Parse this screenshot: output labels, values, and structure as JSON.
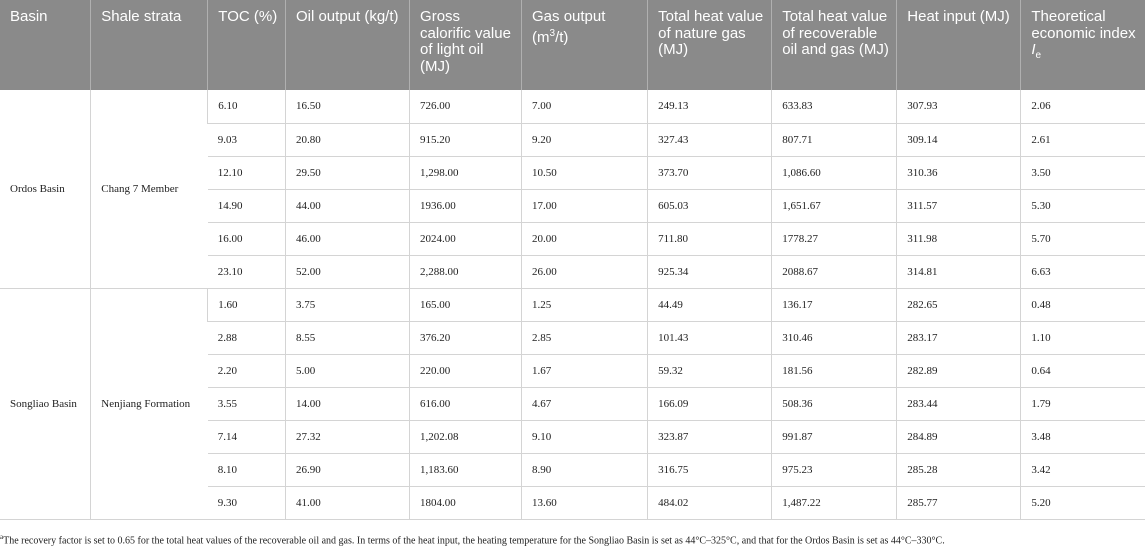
{
  "headers": {
    "basin": "Basin",
    "shale_strata": "Shale strata",
    "toc": "TOC (%)",
    "oil_output": "Oil output (kg/t)",
    "gross_calorific": "Gross calorific value of light oil (MJ)",
    "gas_output_main": "Gas output (m",
    "gas_output_sup": "3",
    "gas_output_tail": "/t)",
    "total_heat_gas": "Total heat value of nature gas (MJ)",
    "total_heat_recoverable": "Total heat value of recoverable oil and gas (MJ)",
    "heat_input": "Heat input (MJ)",
    "index_main": "Theoretical economic index ",
    "index_var": "I",
    "index_sub": "e"
  },
  "groups": [
    {
      "basin": "Ordos Basin",
      "strata": "Chang 7 Member",
      "rows": [
        [
          "6.10",
          "16.50",
          "726.00",
          "7.00",
          "249.13",
          "633.83",
          "307.93",
          "2.06"
        ],
        [
          "9.03",
          "20.80",
          "915.20",
          "9.20",
          "327.43",
          "807.71",
          "309.14",
          "2.61"
        ],
        [
          "12.10",
          "29.50",
          "1,298.00",
          "10.50",
          "373.70",
          "1,086.60",
          "310.36",
          "3.50"
        ],
        [
          "14.90",
          "44.00",
          "1936.00",
          "17.00",
          "605.03",
          "1,651.67",
          "311.57",
          "5.30"
        ],
        [
          "16.00",
          "46.00",
          "2024.00",
          "20.00",
          "711.80",
          "1778.27",
          "311.98",
          "5.70"
        ],
        [
          "23.10",
          "52.00",
          "2,288.00",
          "26.00",
          "925.34",
          "2088.67",
          "314.81",
          "6.63"
        ]
      ]
    },
    {
      "basin": "Songliao Basin",
      "strata": "Nenjiang Formation",
      "rows": [
        [
          "1.60",
          "3.75",
          "165.00",
          "1.25",
          "44.49",
          "136.17",
          "282.65",
          "0.48"
        ],
        [
          "2.88",
          "8.55",
          "376.20",
          "2.85",
          "101.43",
          "310.46",
          "283.17",
          "1.10"
        ],
        [
          "2.20",
          "5.00",
          "220.00",
          "1.67",
          "59.32",
          "181.56",
          "282.89",
          "0.64"
        ],
        [
          "3.55",
          "14.00",
          "616.00",
          "4.67",
          "166.09",
          "508.36",
          "283.44",
          "1.79"
        ],
        [
          "7.14",
          "27.32",
          "1,202.08",
          "9.10",
          "323.87",
          "991.87",
          "284.89",
          "3.48"
        ],
        [
          "8.10",
          "26.90",
          "1,183.60",
          "8.90",
          "316.75",
          "975.23",
          "285.28",
          "3.42"
        ],
        [
          "9.30",
          "41.00",
          "1804.00",
          "13.60",
          "484.02",
          "1,487.22",
          "285.77",
          "5.20"
        ]
      ]
    }
  ],
  "footnote": {
    "marker": "a",
    "text": "The recovery factor is set to 0.65 for the total heat values of the recoverable oil and gas. In terms of the heat input, the heating temperature for the Songliao Basin is set as 44°C–325°C, and that for the Ordos Basin is set as 44°C–330°C."
  }
}
